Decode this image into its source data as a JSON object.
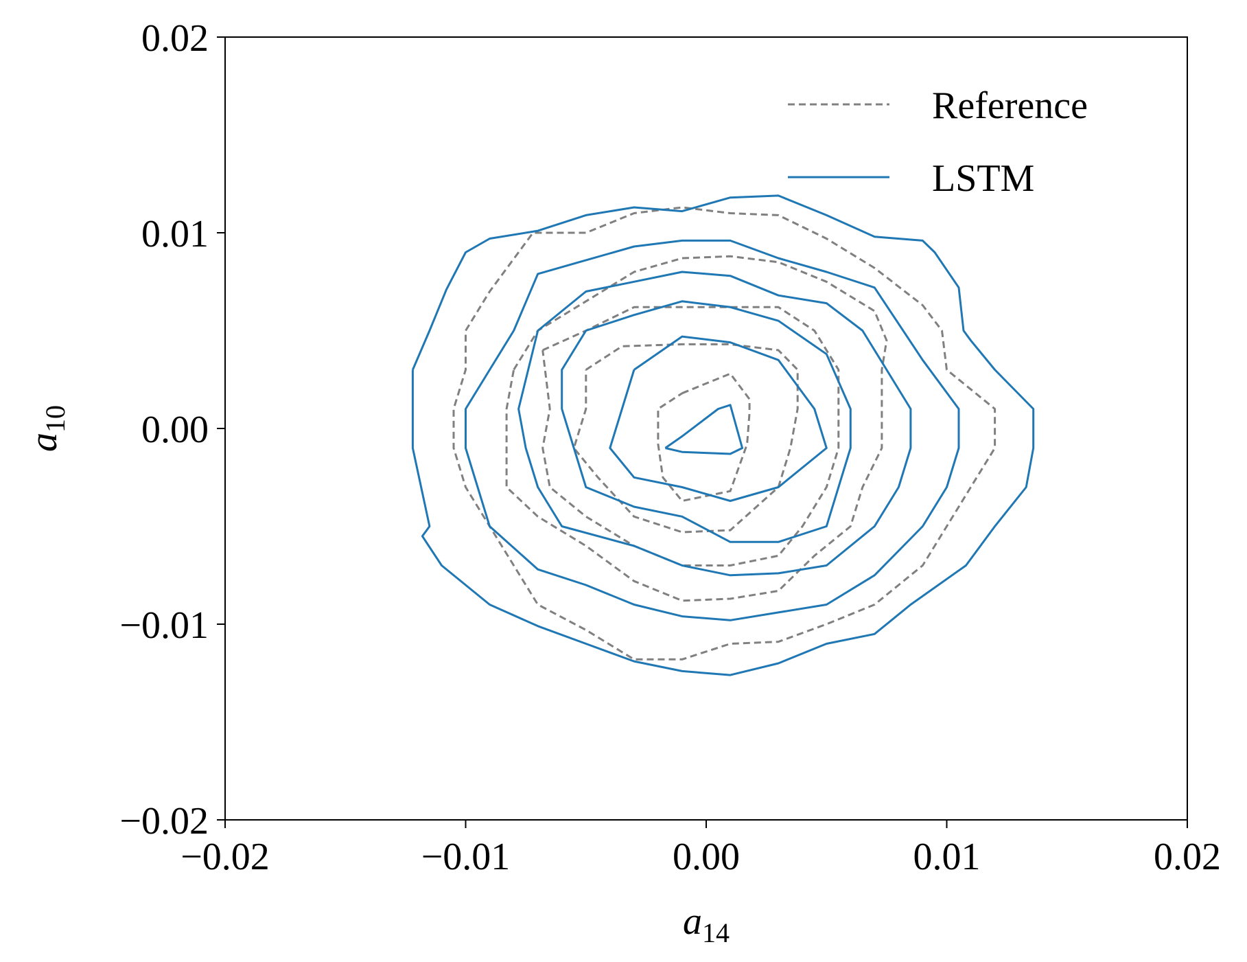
{
  "chart_data": {
    "type": "line",
    "subtype": "contour",
    "xlabel": {
      "base": "a",
      "sub": "14"
    },
    "ylabel": {
      "base": "a",
      "sub": "10"
    },
    "xlim": [
      -0.02,
      0.02
    ],
    "ylim": [
      -0.02,
      0.02
    ],
    "xticks": [
      -0.02,
      -0.01,
      0.0,
      0.01,
      0.02
    ],
    "yticks": [
      -0.02,
      -0.01,
      0.0,
      0.01,
      0.02
    ],
    "xtick_labels": [
      "−0.02",
      "−0.01",
      "0.00",
      "0.01",
      "0.02"
    ],
    "ytick_labels": [
      "−0.02",
      "−0.01",
      "0.00",
      "0.01",
      "0.02"
    ],
    "grid": false,
    "legend_position": "top-right",
    "series": [
      {
        "name": "Reference",
        "color": "#808080",
        "dash": "dashed",
        "contours": [
          [
            [
              -0.001,
              0.0018
            ],
            [
              0.001,
              0.0028
            ],
            [
              0.0018,
              0.0015
            ],
            [
              0.0018,
              0.0008
            ],
            [
              0.0017,
              -0.0008
            ],
            [
              0.001,
              -0.0032
            ],
            [
              -0.001,
              -0.0037
            ],
            [
              -0.0018,
              -0.0025
            ],
            [
              -0.002,
              -0.0008
            ],
            [
              -0.002,
              0.001
            ],
            [
              -0.001,
              0.0018
            ]
          ],
          [
            [
              -0.005,
              0.003
            ],
            [
              -0.0035,
              0.0042
            ],
            [
              -0.001,
              0.0043
            ],
            [
              0.001,
              0.0043
            ],
            [
              0.003,
              0.004
            ],
            [
              0.0038,
              0.003
            ],
            [
              0.0038,
              0.001
            ],
            [
              0.0035,
              -0.001
            ],
            [
              0.003,
              -0.003
            ],
            [
              0.001,
              -0.0052
            ],
            [
              -0.001,
              -0.0053
            ],
            [
              -0.003,
              -0.0045
            ],
            [
              -0.0045,
              -0.0025
            ],
            [
              -0.0055,
              -0.001
            ],
            [
              -0.005,
              0.001
            ],
            [
              -0.005,
              0.003
            ]
          ],
          [
            [
              -0.0068,
              0.004
            ],
            [
              -0.005,
              0.005
            ],
            [
              -0.003,
              0.0062
            ],
            [
              -0.001,
              0.0062
            ],
            [
              0.003,
              0.0062
            ],
            [
              0.0045,
              0.005
            ],
            [
              0.0055,
              0.003
            ],
            [
              0.0055,
              0.001
            ],
            [
              0.0055,
              -0.001
            ],
            [
              0.005,
              -0.003
            ],
            [
              0.004,
              -0.005
            ],
            [
              0.003,
              -0.0065
            ],
            [
              0.001,
              -0.007
            ],
            [
              -0.001,
              -0.007
            ],
            [
              -0.003,
              -0.006
            ],
            [
              -0.005,
              -0.0045
            ],
            [
              -0.0065,
              -0.003
            ],
            [
              -0.0068,
              -0.001
            ],
            [
              -0.0065,
              0.001
            ],
            [
              -0.0068,
              0.004
            ]
          ],
          [
            [
              -0.008,
              0.003
            ],
            [
              -0.007,
              0.005
            ],
            [
              -0.005,
              0.0065
            ],
            [
              -0.003,
              0.008
            ],
            [
              -0.001,
              0.0087
            ],
            [
              0.001,
              0.0088
            ],
            [
              0.003,
              0.0085
            ],
            [
              0.005,
              0.0075
            ],
            [
              0.007,
              0.006
            ],
            [
              0.0075,
              0.0045
            ],
            [
              0.0073,
              0.003
            ],
            [
              0.0073,
              0.001
            ],
            [
              0.0073,
              -0.001
            ],
            [
              0.0065,
              -0.003
            ],
            [
              0.006,
              -0.005
            ],
            [
              0.0045,
              -0.0065
            ],
            [
              0.003,
              -0.0083
            ],
            [
              0.001,
              -0.0087
            ],
            [
              -0.001,
              -0.0088
            ],
            [
              -0.003,
              -0.0078
            ],
            [
              -0.005,
              -0.006
            ],
            [
              -0.007,
              -0.0045
            ],
            [
              -0.0083,
              -0.003
            ],
            [
              -0.0083,
              -0.001
            ],
            [
              -0.0083,
              0.001
            ],
            [
              -0.008,
              0.003
            ]
          ],
          [
            [
              -0.01,
              0.005
            ],
            [
              -0.009,
              0.007
            ],
            [
              -0.0072,
              0.01
            ],
            [
              -0.005,
              0.01
            ],
            [
              -0.003,
              0.011
            ],
            [
              -0.001,
              0.0113
            ],
            [
              0.001,
              0.011
            ],
            [
              0.003,
              0.0109
            ],
            [
              0.005,
              0.0097
            ],
            [
              0.007,
              0.0082
            ],
            [
              0.009,
              0.0063
            ],
            [
              0.0098,
              0.005
            ],
            [
              0.01,
              0.003
            ],
            [
              0.012,
              0.001
            ],
            [
              0.012,
              -0.001
            ],
            [
              0.011,
              -0.003
            ],
            [
              0.01,
              -0.005
            ],
            [
              0.009,
              -0.007
            ],
            [
              0.007,
              -0.009
            ],
            [
              0.005,
              -0.01
            ],
            [
              0.003,
              -0.0109
            ],
            [
              0.001,
              -0.011
            ],
            [
              -0.001,
              -0.0118
            ],
            [
              -0.003,
              -0.0118
            ],
            [
              -0.005,
              -0.0103
            ],
            [
              -0.007,
              -0.009
            ],
            [
              -0.008,
              -0.007
            ],
            [
              -0.009,
              -0.005
            ],
            [
              -0.01,
              -0.003
            ],
            [
              -0.0105,
              -0.001
            ],
            [
              -0.0105,
              0.001
            ],
            [
              -0.01,
              0.003
            ],
            [
              -0.01,
              0.005
            ]
          ]
        ]
      },
      {
        "name": "LSTM",
        "color": "#1f77b4",
        "dash": "solid",
        "contours": [
          [
            [
              -0.0017,
              -0.001
            ],
            [
              -0.001,
              -0.0004
            ],
            [
              0.0005,
              0.001
            ],
            [
              0.001,
              0.0012
            ],
            [
              0.0015,
              -0.001
            ],
            [
              0.001,
              -0.0013
            ],
            [
              -0.001,
              -0.0012
            ],
            [
              -0.0017,
              -0.001
            ]
          ],
          [
            [
              -0.003,
              0.003
            ],
            [
              -0.001,
              0.0047
            ],
            [
              0.001,
              0.0044
            ],
            [
              0.003,
              0.0035
            ],
            [
              0.0045,
              0.001
            ],
            [
              0.005,
              -0.001
            ],
            [
              0.003,
              -0.003
            ],
            [
              0.001,
              -0.0037
            ],
            [
              -0.001,
              -0.003
            ],
            [
              -0.003,
              -0.0025
            ],
            [
              -0.004,
              -0.001
            ],
            [
              -0.003,
              0.003
            ]
          ],
          [
            [
              -0.005,
              0.005
            ],
            [
              -0.003,
              0.0058
            ],
            [
              -0.001,
              0.0065
            ],
            [
              0.001,
              0.0062
            ],
            [
              0.003,
              0.0055
            ],
            [
              0.005,
              0.0038
            ],
            [
              0.006,
              0.001
            ],
            [
              0.006,
              -0.001
            ],
            [
              0.005,
              -0.005
            ],
            [
              0.003,
              -0.0058
            ],
            [
              0.001,
              -0.0058
            ],
            [
              -0.001,
              -0.0045
            ],
            [
              -0.003,
              -0.004
            ],
            [
              -0.005,
              -0.003
            ],
            [
              -0.0055,
              -0.001
            ],
            [
              -0.006,
              0.001
            ],
            [
              -0.006,
              0.003
            ],
            [
              -0.005,
              0.005
            ]
          ],
          [
            [
              -0.007,
              0.005
            ],
            [
              -0.005,
              0.007
            ],
            [
              -0.003,
              0.0075
            ],
            [
              -0.001,
              0.008
            ],
            [
              0.001,
              0.0078
            ],
            [
              0.003,
              0.0068
            ],
            [
              0.005,
              0.0064
            ],
            [
              0.0065,
              0.005
            ],
            [
              0.0075,
              0.003
            ],
            [
              0.0085,
              0.001
            ],
            [
              0.0085,
              -0.001
            ],
            [
              0.008,
              -0.003
            ],
            [
              0.007,
              -0.005
            ],
            [
              0.005,
              -0.007
            ],
            [
              0.003,
              -0.0074
            ],
            [
              0.001,
              -0.0075
            ],
            [
              -0.001,
              -0.007
            ],
            [
              -0.003,
              -0.006
            ],
            [
              -0.006,
              -0.005
            ],
            [
              -0.007,
              -0.003
            ],
            [
              -0.0075,
              -0.001
            ],
            [
              -0.0078,
              0.001
            ],
            [
              -0.007,
              0.005
            ]
          ],
          [
            [
              -0.009,
              0.003
            ],
            [
              -0.008,
              0.005
            ],
            [
              -0.007,
              0.0079
            ],
            [
              -0.005,
              0.0086
            ],
            [
              -0.003,
              0.0093
            ],
            [
              -0.001,
              0.0096
            ],
            [
              0.001,
              0.0096
            ],
            [
              0.003,
              0.0087
            ],
            [
              0.005,
              0.008
            ],
            [
              0.007,
              0.0072
            ],
            [
              0.009,
              0.0035
            ],
            [
              0.0105,
              0.001
            ],
            [
              0.0105,
              -0.001
            ],
            [
              0.01,
              -0.003
            ],
            [
              0.009,
              -0.005
            ],
            [
              0.007,
              -0.0075
            ],
            [
              0.005,
              -0.009
            ],
            [
              0.003,
              -0.0094
            ],
            [
              0.001,
              -0.0098
            ],
            [
              -0.001,
              -0.0096
            ],
            [
              -0.003,
              -0.009
            ],
            [
              -0.005,
              -0.008
            ],
            [
              -0.007,
              -0.0072
            ],
            [
              -0.009,
              -0.005
            ],
            [
              -0.0095,
              -0.003
            ],
            [
              -0.01,
              -0.001
            ],
            [
              -0.01,
              0.001
            ],
            [
              -0.009,
              0.003
            ]
          ],
          [
            [
              -0.0122,
              0.003
            ],
            [
              -0.0115,
              0.005
            ],
            [
              -0.0108,
              0.0071
            ],
            [
              -0.01,
              0.009
            ],
            [
              -0.009,
              0.0097
            ],
            [
              -0.007,
              0.0101
            ],
            [
              -0.005,
              0.0109
            ],
            [
              -0.003,
              0.0113
            ],
            [
              -0.001,
              0.0111
            ],
            [
              0.001,
              0.0118
            ],
            [
              0.003,
              0.0119
            ],
            [
              0.005,
              0.0109
            ],
            [
              0.007,
              0.0098
            ],
            [
              0.009,
              0.0096
            ],
            [
              0.0095,
              0.009
            ],
            [
              0.0105,
              0.0072
            ],
            [
              0.0107,
              0.005
            ],
            [
              0.011,
              0.0045
            ],
            [
              0.012,
              0.003
            ],
            [
              0.0136,
              0.001
            ],
            [
              0.0136,
              -0.001
            ],
            [
              0.0133,
              -0.003
            ],
            [
              0.012,
              -0.005
            ],
            [
              0.0108,
              -0.007
            ],
            [
              0.0085,
              -0.009
            ],
            [
              0.007,
              -0.0105
            ],
            [
              0.005,
              -0.011
            ],
            [
              0.003,
              -0.012
            ],
            [
              0.001,
              -0.0126
            ],
            [
              -0.001,
              -0.0124
            ],
            [
              -0.003,
              -0.0119
            ],
            [
              -0.005,
              -0.011
            ],
            [
              -0.007,
              -0.0101
            ],
            [
              -0.009,
              -0.009
            ],
            [
              -0.011,
              -0.007
            ],
            [
              -0.0118,
              -0.0055
            ],
            [
              -0.0115,
              -0.005
            ],
            [
              -0.0122,
              -0.001
            ],
            [
              -0.0122,
              0.001
            ],
            [
              -0.0122,
              0.003
            ]
          ]
        ]
      }
    ]
  }
}
